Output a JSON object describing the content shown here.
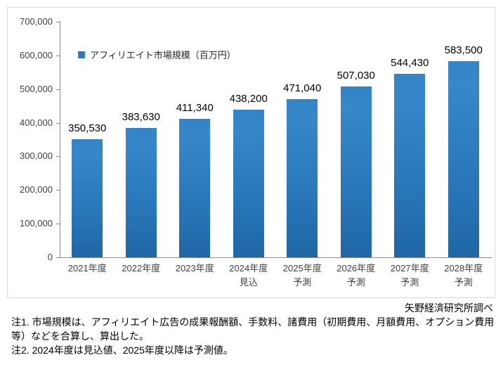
{
  "chart_data": {
    "type": "bar",
    "title": "",
    "legend": "アフィリエイト市場規模（百万円）",
    "legend_position": "inside-top-left",
    "categories": [
      "2021年度",
      "2022年度",
      "2023年度",
      "2024年度",
      "2025年度",
      "2026年度",
      "2027年度",
      "2028年度"
    ],
    "category_sublabels": [
      "",
      "",
      "",
      "見込",
      "予測",
      "予測",
      "予測",
      "予測"
    ],
    "values": [
      350530,
      383630,
      411340,
      438200,
      471040,
      507030,
      544430,
      583500
    ],
    "value_labels": [
      "350,530",
      "383,630",
      "411,340",
      "438,200",
      "471,040",
      "507,030",
      "544,430",
      "583,500"
    ],
    "xlabel": "",
    "ylabel": "",
    "ylim": [
      0,
      700000
    ],
    "ytick_interval": 100000,
    "ytick_labels": [
      "0",
      "100,000",
      "200,000",
      "300,000",
      "400,000",
      "500,000",
      "600,000",
      "700,000"
    ],
    "grid": false,
    "bar_color": "#2b7bc0",
    "bar_color_top": "#3383c8",
    "bar_color_bottom": "#1f67a5",
    "axis_color": "#8c8c8c",
    "legend_swatch_color": "#2e7bbe"
  },
  "footer": {
    "source": "矢野経済研究所調べ",
    "note1": "注1. 市場規模は、アフィリエイト広告の成果報酬額、手数料、諸費用（初期費用、月額費用、オプション費用等）などを合算し、算出した。",
    "note2": "注2. 2024年度は見込値、2025年度以降は予測値。"
  }
}
